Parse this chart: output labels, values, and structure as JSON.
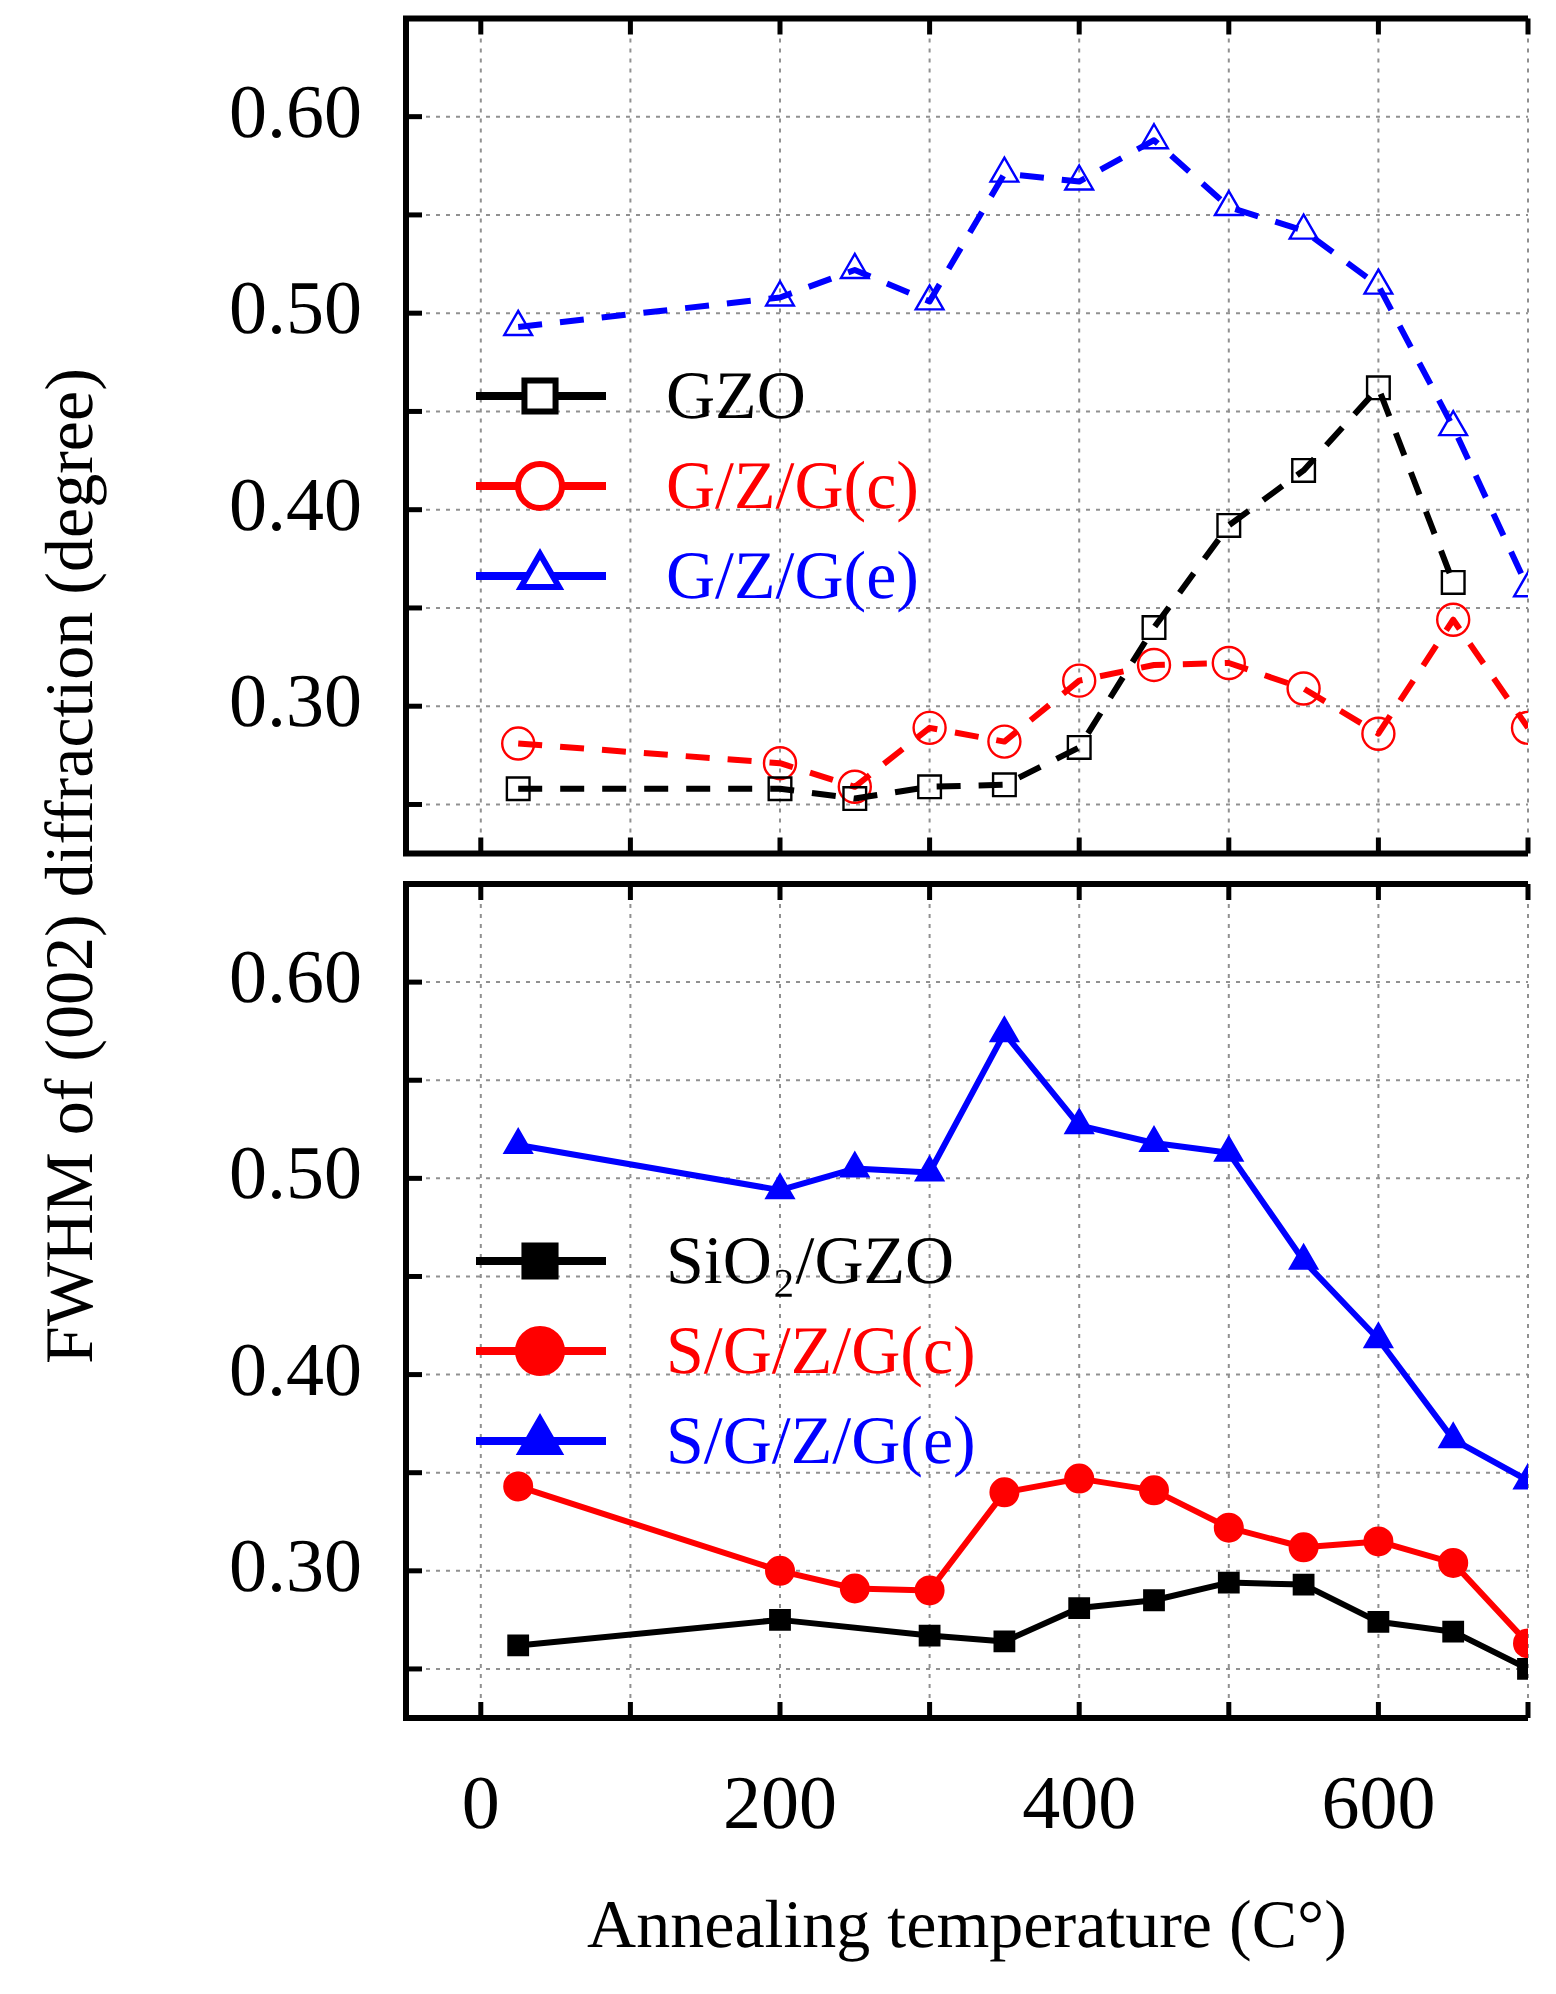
{
  "chart_data": [
    {
      "type": "line",
      "x": [
        25,
        200,
        250,
        300,
        350,
        400,
        450,
        500,
        550,
        600,
        650,
        700
      ],
      "xlim": [
        -50,
        700
      ],
      "xticks": [
        {
          "value": 0,
          "label": null
        },
        {
          "value": 100,
          "label": null
        },
        {
          "value": 200,
          "label": null
        },
        {
          "value": 300,
          "label": null
        },
        {
          "value": 400,
          "label": null
        },
        {
          "value": 500,
          "label": null
        },
        {
          "value": 600,
          "label": null
        },
        {
          "value": 700,
          "label": null
        }
      ],
      "ylim": [
        0.225,
        0.65
      ],
      "yticks": [
        {
          "value": 0.25,
          "label": null
        },
        {
          "value": 0.3,
          "label": "0.30"
        },
        {
          "value": 0.35,
          "label": null
        },
        {
          "value": 0.4,
          "label": "0.40"
        },
        {
          "value": 0.45,
          "label": null
        },
        {
          "value": 0.5,
          "label": "0.50"
        },
        {
          "value": 0.55,
          "label": null
        },
        {
          "value": 0.6,
          "label": "0.60"
        }
      ],
      "tick_labels": "y",
      "grid": true,
      "legend": "left",
      "line_style": "dashed",
      "series": [
        {
          "name": "GZO",
          "color": "#000000",
          "marker": "square",
          "values": [
            0.258,
            0.258,
            0.253,
            0.259,
            0.26,
            0.279,
            0.34,
            0.392,
            0.42,
            0.462,
            0.363,
            null
          ]
        },
        {
          "name": "G/Z/G(c)",
          "color": "#ff0000",
          "marker": "circle",
          "values": [
            0.281,
            0.271,
            0.259,
            0.289,
            0.282,
            0.313,
            0.321,
            0.322,
            0.309,
            0.286,
            0.344,
            0.289
          ]
        },
        {
          "name": "G/Z/G(e)",
          "color": "#0000ff",
          "marker": "triangle",
          "values": [
            0.493,
            0.508,
            0.522,
            0.506,
            0.571,
            0.567,
            0.588,
            0.554,
            0.542,
            0.514,
            0.442,
            0.36
          ]
        }
      ]
    },
    {
      "type": "line",
      "x": [
        25,
        200,
        250,
        300,
        350,
        400,
        450,
        500,
        550,
        600,
        650,
        700
      ],
      "xlim": [
        -50,
        700
      ],
      "xticks": [
        0,
        {
          "value": 100,
          "label": null
        },
        200,
        {
          "value": 300,
          "label": null
        },
        400,
        {
          "value": 500,
          "label": null
        },
        600,
        {
          "value": 700,
          "label": null
        }
      ],
      "ylim": [
        0.225,
        0.65
      ],
      "yticks": [
        {
          "value": 0.25,
          "label": null
        },
        {
          "value": 0.3,
          "label": "0.30"
        },
        {
          "value": 0.35,
          "label": null
        },
        {
          "value": 0.4,
          "label": "0.40"
        },
        {
          "value": 0.45,
          "label": null
        },
        {
          "value": 0.5,
          "label": "0.50"
        },
        {
          "value": 0.55,
          "label": null
        },
        {
          "value": 0.6,
          "label": "0.60"
        }
      ],
      "grid": true,
      "legend": "left",
      "line_style": "solid",
      "xlabel": "Annealing temperature (C°)",
      "ylabel": "FWHM of (002) diffraction (degree)",
      "series": [
        {
          "name": "SiO₂/GZO",
          "color": "#000000",
          "marker": "square",
          "values": [
            0.262,
            0.275,
            null,
            0.267,
            0.264,
            0.281,
            0.285,
            0.294,
            0.293,
            0.274,
            0.269,
            0.25
          ]
        },
        {
          "name": "S/G/Z/G(c)",
          "color": "#ff0000",
          "marker": "circle",
          "values": [
            0.343,
            0.3,
            0.291,
            0.29,
            0.34,
            0.347,
            0.341,
            0.322,
            0.312,
            0.315,
            0.304,
            0.263
          ]
        },
        {
          "name": "S/G/Z/G(e)",
          "color": "#0000ff",
          "marker": "triangle",
          "values": [
            0.517,
            0.494,
            0.505,
            0.503,
            0.574,
            0.527,
            0.518,
            0.513,
            0.458,
            0.418,
            0.367,
            0.346
          ]
        }
      ]
    }
  ]
}
